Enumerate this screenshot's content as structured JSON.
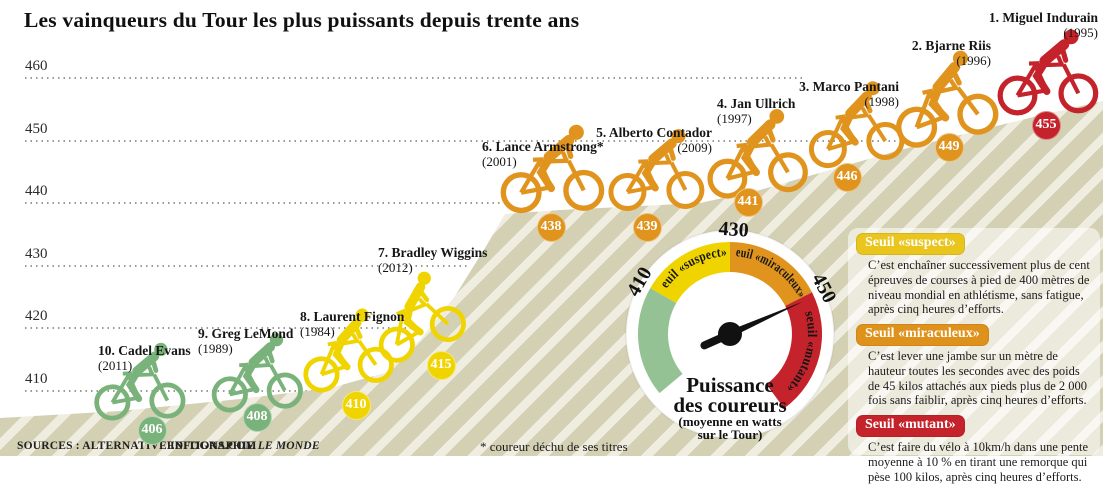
{
  "title": "Les vainqueurs du Tour les plus puissants depuis trente ans",
  "footer": {
    "sources": "SOURCES : ALTERNATIVEEDITIONS.COM",
    "infographie_label": "INFOGRAPHIE",
    "infographie_brand": "LE MONDE",
    "footnote": "* coureur déchu de ses titres"
  },
  "gauge": {
    "center_title_line1": "Puissance",
    "center_title_line2": "des coureurs",
    "center_subtitle_line1": "(moyenne en watts",
    "center_subtitle_line2": "sur le Tour)",
    "tick_410": "410",
    "tick_430": "430",
    "tick_450": "450",
    "segment_suspect": "seuil «suspect»",
    "segment_miraculeux": "seuil «miraculeux»",
    "segment_mutant": "seuil «mutant»"
  },
  "panel": {
    "sections": [
      {
        "label": "Seuil «suspect»",
        "color": "#e9c51e",
        "text": "C’est enchaîner successivement plus de cent épreuves de courses à pied de 400 mètres de niveau mondial en athlétisme, sans fatigue, après cinq heures d’efforts."
      },
      {
        "label": "Seuil «miraculeux»",
        "color": "#df921b",
        "text": "C’est lever une jambe sur un mètre de hauteur toutes les secondes avec des poids de 45 kilos attachés aux pieds plus de 2 000 fois sans faiblir, après cinq heures d’efforts."
      },
      {
        "label": "Seuil «mutant»",
        "color": "#c5232b",
        "text": "C’est faire du vélo à 10km/h dans une pente moyenne à 10 % en tirant une remorque qui pèse 100 kilos, après cinq heures d’efforts."
      }
    ]
  },
  "colors": {
    "normal_green": "#79b27a",
    "suspect_yellow": "#f0d400",
    "miraculeux_orange": "#e0941e",
    "mutant_red": "#c5232b",
    "stripe_dark": "#d4d0b4",
    "stripe_light": "#efede0"
  },
  "chart_data": {
    "type": "scatter",
    "title": "Les vainqueurs du Tour les plus puissants depuis trente ans",
    "xlabel": "",
    "ylabel": "Puissance des coureurs (moyenne en watts sur le Tour)",
    "ylim": [
      400,
      465
    ],
    "yticks": [
      460,
      450,
      440,
      430,
      420,
      410
    ],
    "grid": "horizontal dotted",
    "legend_position": "gauge center-bottom",
    "points": [
      {
        "rank": 1,
        "name": "Miguel Indurain",
        "note": "",
        "year": 1995,
        "watts": 455,
        "category": "mutant",
        "color": "#c5232b"
      },
      {
        "rank": 2,
        "name": "Bjarne Riis",
        "note": "",
        "year": 1996,
        "watts": 449,
        "category": "miraculeux",
        "color": "#e0941e"
      },
      {
        "rank": 3,
        "name": "Marco Pantani",
        "note": "",
        "year": 1998,
        "watts": 446,
        "category": "miraculeux",
        "color": "#e0941e"
      },
      {
        "rank": 4,
        "name": "Jan Ullrich",
        "note": "",
        "year": 1997,
        "watts": 441,
        "category": "miraculeux",
        "color": "#e0941e"
      },
      {
        "rank": 5,
        "name": "Alberto Contador",
        "note": "",
        "year": 2009,
        "watts": 439,
        "category": "miraculeux",
        "color": "#e0941e"
      },
      {
        "rank": 6,
        "name": "Lance Armstrong",
        "note": "*",
        "year": 2001,
        "watts": 438,
        "category": "miraculeux",
        "color": "#e0941e"
      },
      {
        "rank": 7,
        "name": "Bradley Wiggins",
        "note": "",
        "year": 2012,
        "watts": 415,
        "category": "suspect",
        "color": "#f0d400"
      },
      {
        "rank": 8,
        "name": "Laurent Fignon",
        "note": "",
        "year": 1984,
        "watts": 410,
        "category": "suspect",
        "color": "#f0d400"
      },
      {
        "rank": 9,
        "name": "Greg LeMond",
        "note": "",
        "year": 1989,
        "watts": 408,
        "category": "normal",
        "color": "#79b27a"
      },
      {
        "rank": 10,
        "name": "Cadel Evans",
        "note": "",
        "year": 2011,
        "watts": 406,
        "category": "normal",
        "color": "#79b27a"
      }
    ],
    "thresholds": [
      {
        "label": "seuil «suspect»",
        "from": 410,
        "to": 430,
        "color": "#f0d400"
      },
      {
        "label": "seuil «miraculeux»",
        "from": 430,
        "to": 450,
        "color": "#e0941e"
      },
      {
        "label": "seuil «mutant»",
        "from": 450,
        "to": null,
        "color": "#c5232b"
      }
    ],
    "gauge_ticks": [
      410,
      430,
      450
    ],
    "gauge_needle_value": 451
  }
}
